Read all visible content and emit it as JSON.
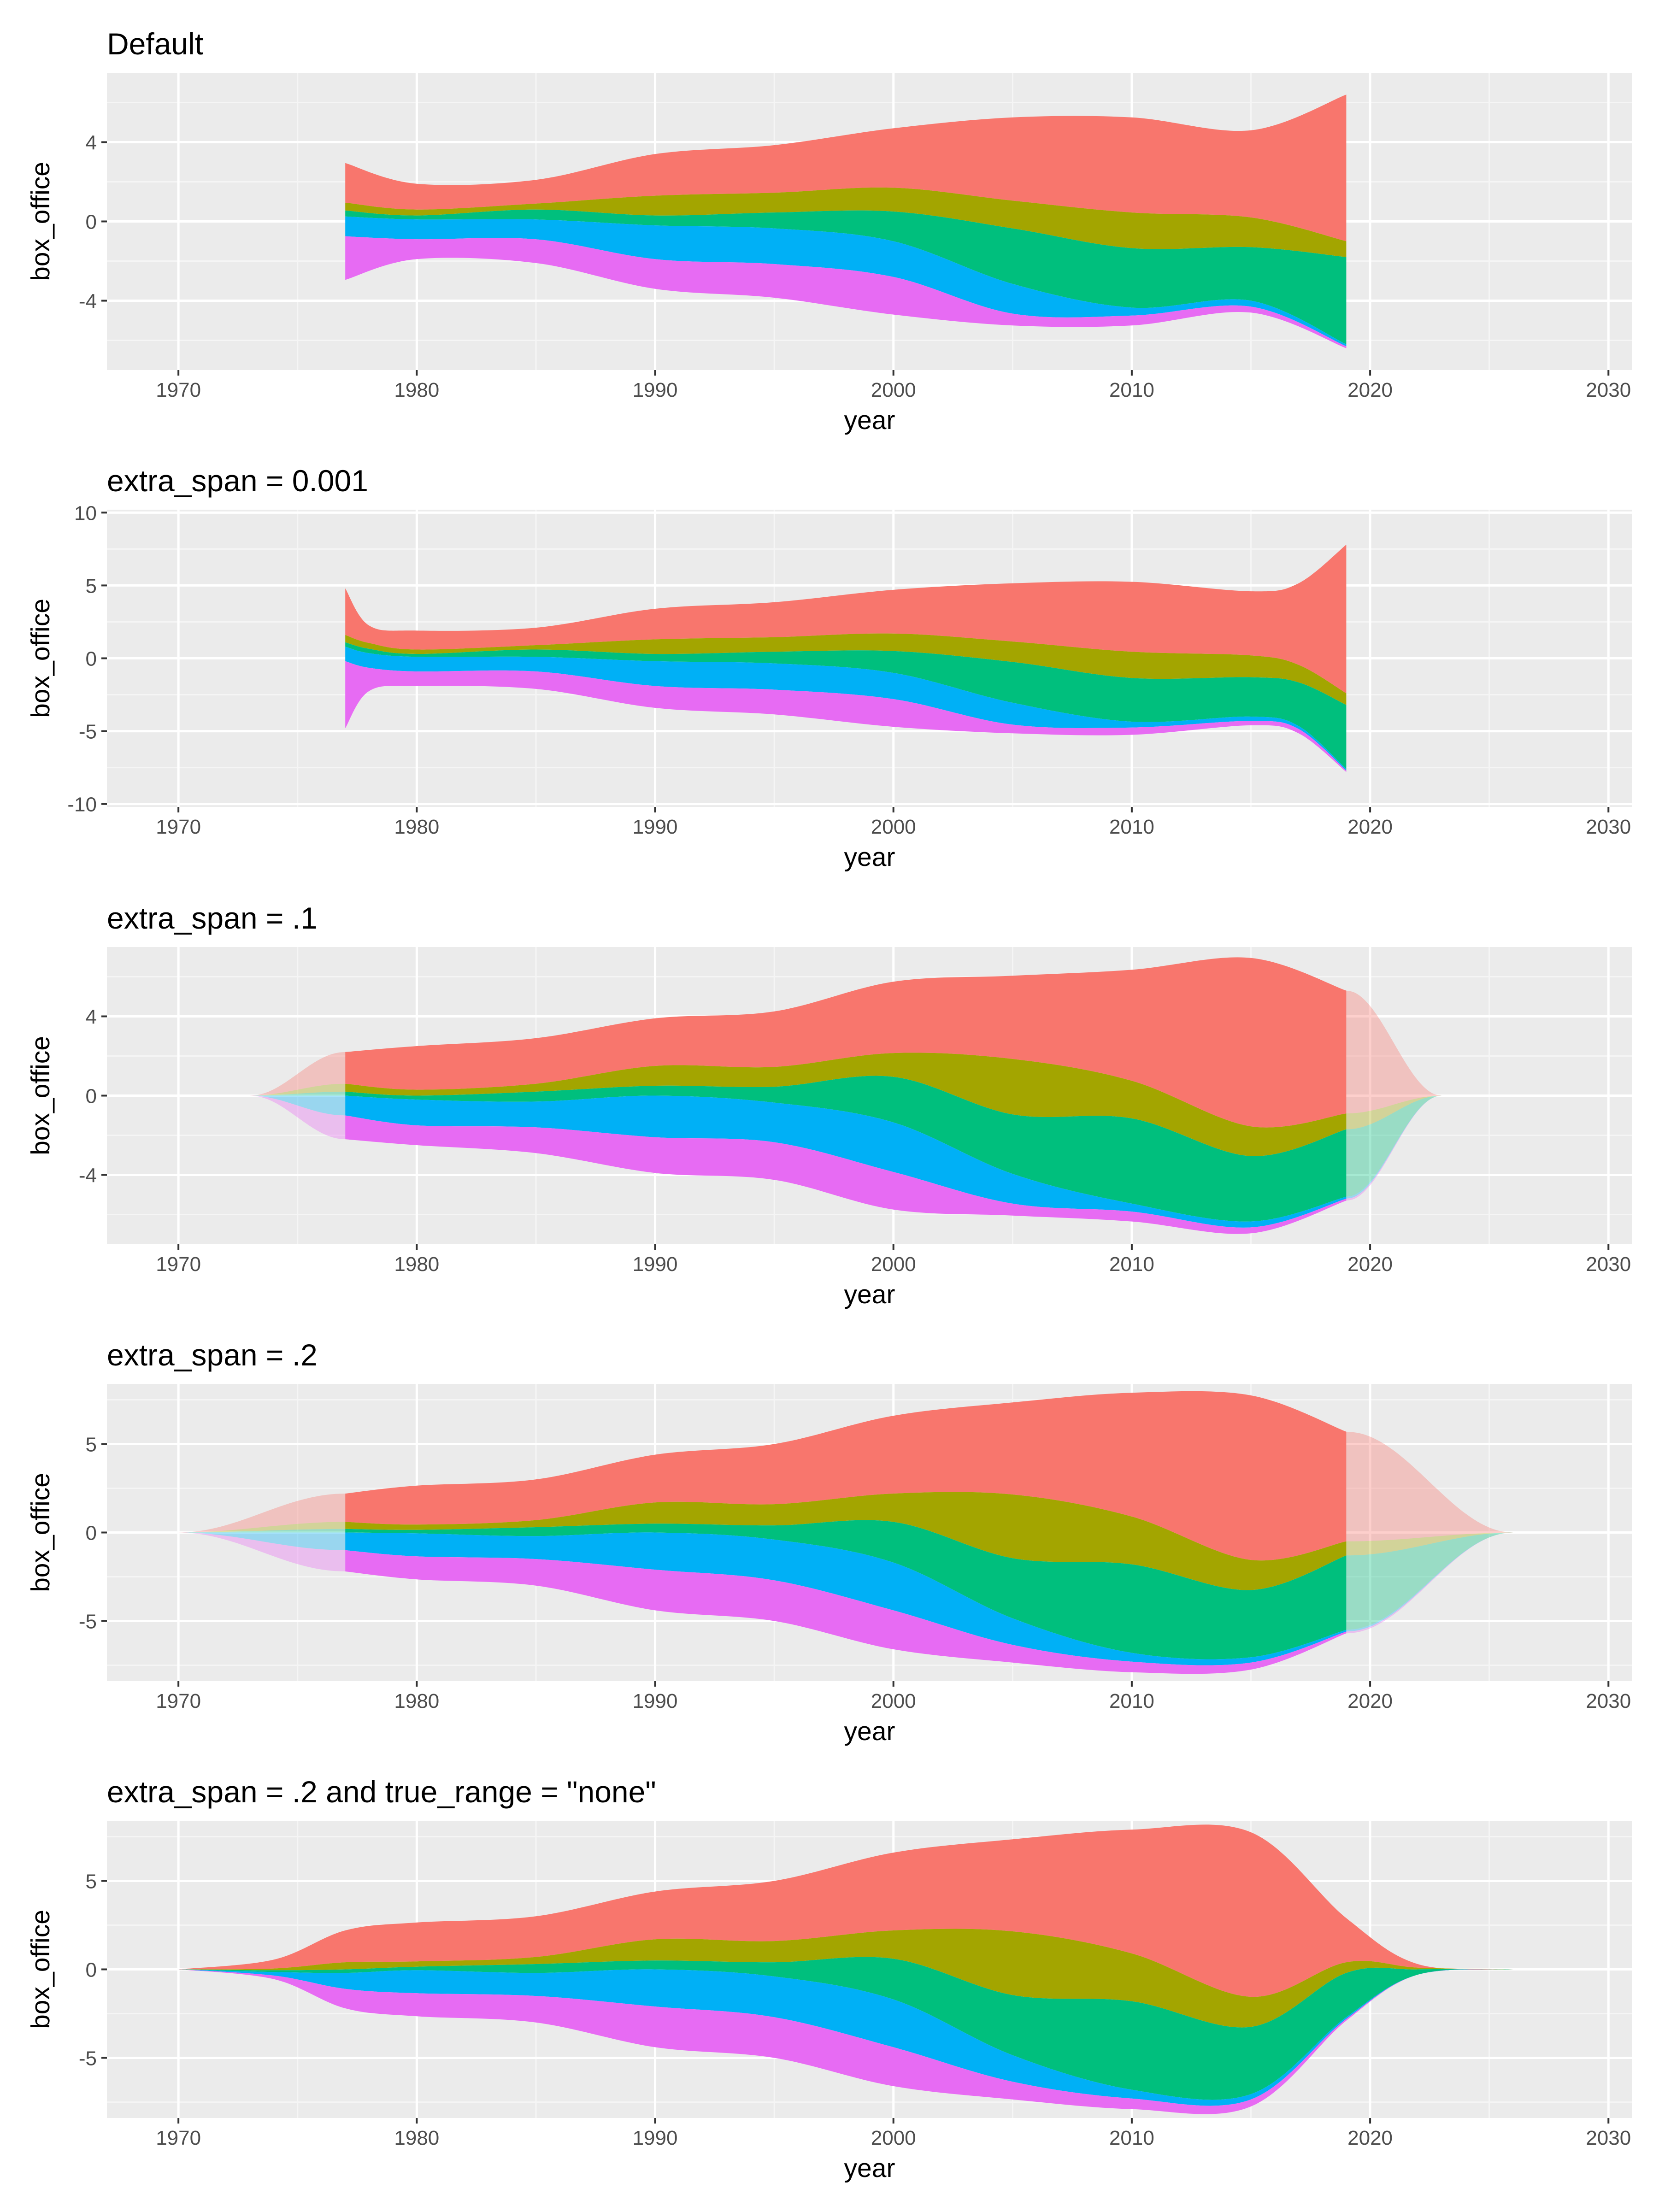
{
  "chart_data": [
    {
      "type": "area",
      "title": "Default",
      "xlabel": "year",
      "ylabel": "box_office",
      "xlim": [
        1967,
        2031
      ],
      "ylim": [
        -7.5,
        7.5
      ],
      "xticks": [
        1970,
        1980,
        1990,
        2000,
        2010,
        2020,
        2030
      ],
      "yticks": [
        -4,
        0,
        4
      ],
      "ytick_labels": [
        "-4",
        "0",
        "4"
      ],
      "grid": true,
      "extension": "none",
      "x": [
        1977,
        1980,
        1985,
        1990,
        1995,
        2000,
        2005,
        2010,
        2015,
        2019
      ],
      "series": [
        {
          "color": "#F8766D",
          "values": [
            2.0,
            1.3,
            1.2,
            2.1,
            2.4,
            3.0,
            4.2,
            4.8,
            4.4,
            7.4
          ]
        },
        {
          "color": "#A3A500",
          "values": [
            0.4,
            0.3,
            0.3,
            1.0,
            1.0,
            1.2,
            1.4,
            1.8,
            1.5,
            0.8
          ]
        },
        {
          "color": "#00BF7D",
          "values": [
            0.3,
            0.2,
            0.5,
            0.5,
            0.8,
            1.5,
            2.8,
            3.0,
            2.7,
            4.4
          ]
        },
        {
          "color": "#00B0F6",
          "values": [
            1.0,
            1.0,
            1.0,
            1.7,
            1.8,
            1.8,
            1.5,
            0.4,
            0.3,
            0.1
          ]
        },
        {
          "color": "#E76BF3",
          "values": [
            2.2,
            1.0,
            1.2,
            1.5,
            1.7,
            1.9,
            0.6,
            0.5,
            0.3,
            0.1
          ]
        }
      ]
    },
    {
      "type": "area",
      "title": "extra_span = 0.001",
      "xlabel": "year",
      "ylabel": "box_office",
      "xlim": [
        1967,
        2031
      ],
      "ylim": [
        -10.2,
        10.2
      ],
      "xticks": [
        1970,
        1980,
        1990,
        2000,
        2010,
        2020,
        2030
      ],
      "yticks": [
        -10,
        -5,
        0,
        5,
        10
      ],
      "ytick_labels": [
        "-10",
        "-5",
        "0",
        "5",
        "10"
      ],
      "grid": true,
      "extension": "none",
      "x": [
        1977,
        1978,
        1980,
        1985,
        1990,
        1995,
        2000,
        2005,
        2010,
        2015,
        2017,
        2019
      ],
      "series": [
        {
          "color": "#F8766D",
          "values": [
            3.2,
            1.2,
            1.3,
            1.2,
            2.1,
            2.4,
            3.0,
            4.0,
            4.8,
            4.4,
            5.6,
            10.2
          ]
        },
        {
          "color": "#A3A500",
          "values": [
            0.5,
            0.4,
            0.3,
            0.3,
            1.0,
            1.0,
            1.2,
            1.4,
            1.8,
            1.5,
            1.2,
            0.8
          ]
        },
        {
          "color": "#00BF7D",
          "values": [
            0.3,
            0.3,
            0.2,
            0.5,
            0.5,
            0.8,
            1.5,
            2.8,
            3.0,
            2.7,
            3.0,
            4.4
          ]
        },
        {
          "color": "#00B0F6",
          "values": [
            1.0,
            1.0,
            1.0,
            1.0,
            1.7,
            1.8,
            1.8,
            1.5,
            0.4,
            0.3,
            0.2,
            0.1
          ]
        },
        {
          "color": "#E76BF3",
          "values": [
            4.6,
            1.6,
            1.0,
            1.2,
            1.5,
            1.7,
            1.9,
            0.6,
            0.5,
            0.3,
            0.3,
            0.1
          ]
        }
      ]
    },
    {
      "type": "area",
      "title": "extra_span = .1",
      "xlabel": "year",
      "ylabel": "box_office",
      "xlim": [
        1967,
        2031
      ],
      "ylim": [
        -7.5,
        7.5
      ],
      "xticks": [
        1970,
        1980,
        1990,
        2000,
        2010,
        2020,
        2030
      ],
      "yticks": [
        -4,
        0,
        4
      ],
      "ytick_labels": [
        "-4",
        "0",
        "4"
      ],
      "grid": true,
      "extension": "faded",
      "extended_range": [
        1973,
        2023
      ],
      "x": [
        1977,
        1980,
        1985,
        1990,
        1995,
        2000,
        2005,
        2010,
        2015,
        2019
      ],
      "series": [
        {
          "color": "#F8766D",
          "values": [
            1.6,
            2.2,
            2.3,
            2.4,
            2.8,
            3.6,
            4.2,
            5.6,
            8.5,
            6.2
          ]
        },
        {
          "color": "#A3A500",
          "values": [
            0.4,
            0.3,
            0.4,
            1.0,
            1.0,
            1.2,
            2.8,
            1.9,
            1.5,
            0.8
          ]
        },
        {
          "color": "#00BF7D",
          "values": [
            0.2,
            0.2,
            0.5,
            0.5,
            0.8,
            2.3,
            3.0,
            4.3,
            3.3,
            3.4
          ]
        },
        {
          "color": "#00B0F6",
          "values": [
            1.0,
            1.3,
            1.3,
            2.1,
            2.0,
            2.5,
            1.5,
            0.4,
            0.3,
            0.1
          ]
        },
        {
          "color": "#E76BF3",
          "values": [
            1.2,
            1.0,
            1.3,
            1.8,
            1.9,
            1.9,
            0.6,
            0.5,
            0.3,
            0.1
          ]
        }
      ]
    },
    {
      "type": "area",
      "title": "extra_span = .2",
      "xlabel": "year",
      "ylabel": "box_office",
      "xlim": [
        1967,
        2031
      ],
      "ylim": [
        -8.4,
        8.4
      ],
      "xticks": [
        1970,
        1980,
        1990,
        2000,
        2010,
        2020,
        2030
      ],
      "yticks": [
        -5,
        0,
        5
      ],
      "ytick_labels": [
        "-5",
        "0",
        "5"
      ],
      "grid": true,
      "extension": "faded",
      "extended_range": [
        1970,
        2026
      ],
      "x": [
        1977,
        1980,
        1985,
        1990,
        1995,
        2000,
        2005,
        2010,
        2015,
        2019
      ],
      "series": [
        {
          "color": "#F8766D",
          "values": [
            1.6,
            2.2,
            2.3,
            2.7,
            3.4,
            4.4,
            5.2,
            7.0,
            9.3,
            6.2
          ]
        },
        {
          "color": "#A3A500",
          "values": [
            0.4,
            0.3,
            0.4,
            1.2,
            1.2,
            1.6,
            3.6,
            2.7,
            1.7,
            0.8
          ]
        },
        {
          "color": "#00BF7D",
          "values": [
            0.2,
            0.2,
            0.5,
            0.5,
            0.8,
            2.3,
            3.4,
            5.0,
            3.8,
            4.2
          ]
        },
        {
          "color": "#00B0F6",
          "values": [
            1.0,
            1.3,
            1.3,
            2.1,
            2.3,
            2.7,
            1.5,
            0.5,
            0.3,
            0.1
          ]
        },
        {
          "color": "#E76BF3",
          "values": [
            1.2,
            1.3,
            1.5,
            2.3,
            2.3,
            2.2,
            1.0,
            0.6,
            0.4,
            0.1
          ]
        }
      ]
    },
    {
      "type": "area",
      "title": "extra_span = .2 and true_range = \"none\"",
      "xlabel": "year",
      "ylabel": "box_office",
      "xlim": [
        1967,
        2031
      ],
      "ylim": [
        -8.4,
        8.4
      ],
      "xticks": [
        1970,
        1980,
        1990,
        2000,
        2010,
        2020,
        2030
      ],
      "yticks": [
        -5,
        0,
        5
      ],
      "ytick_labels": [
        "-5",
        "0",
        "5"
      ],
      "grid": true,
      "extension": "solid",
      "x": [
        1970,
        1974,
        1977,
        1980,
        1985,
        1990,
        1995,
        2000,
        2005,
        2010,
        2015,
        2019,
        2022,
        2026
      ],
      "series": [
        {
          "color": "#F8766D",
          "values": [
            0,
            0.5,
            1.8,
            2.2,
            2.3,
            2.7,
            3.4,
            4.4,
            5.2,
            7.0,
            9.3,
            2.5,
            0.2,
            0
          ]
        },
        {
          "color": "#A3A500",
          "values": [
            0,
            0.1,
            0.4,
            0.3,
            0.4,
            1.2,
            1.2,
            1.6,
            3.6,
            2.7,
            1.7,
            0.6,
            0.1,
            0
          ]
        },
        {
          "color": "#00BF7D",
          "values": [
            0,
            0.1,
            0.2,
            0.2,
            0.5,
            0.5,
            0.8,
            2.3,
            3.4,
            5.0,
            3.8,
            2.5,
            0.3,
            0
          ]
        },
        {
          "color": "#00B0F6",
          "values": [
            0,
            0.2,
            0.9,
            1.3,
            1.3,
            2.1,
            2.3,
            2.7,
            1.5,
            0.5,
            0.3,
            0.1,
            0,
            0
          ]
        },
        {
          "color": "#E76BF3",
          "values": [
            0,
            0.2,
            1.1,
            1.3,
            1.5,
            2.3,
            2.3,
            2.2,
            1.0,
            0.6,
            0.4,
            0.1,
            0,
            0
          ]
        }
      ]
    }
  ]
}
